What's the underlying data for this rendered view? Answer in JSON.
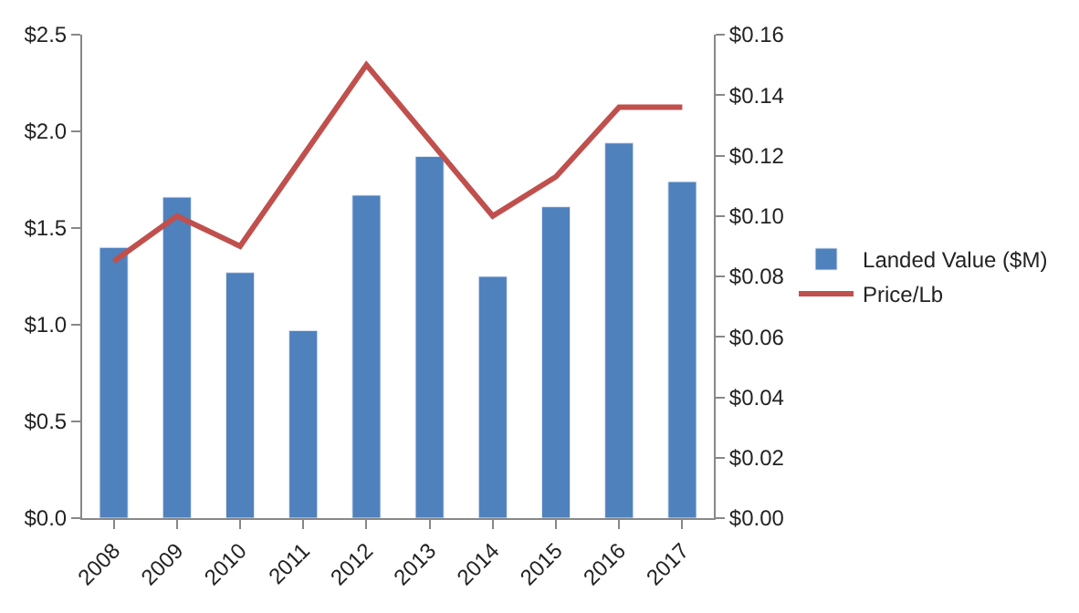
{
  "chart_data": {
    "type": "bar",
    "categories": [
      "2008",
      "2009",
      "2010",
      "2011",
      "2012",
      "2013",
      "2014",
      "2015",
      "2016",
      "2017"
    ],
    "series": [
      {
        "name": "Landed Value ($M)",
        "color": "#4f81bd",
        "values": [
          1.4,
          1.66,
          1.27,
          0.97,
          1.67,
          1.87,
          1.25,
          1.61,
          1.94,
          1.74
        ]
      },
      {
        "name": "Price/Lb",
        "color": "#c0504d",
        "type": "line",
        "axis": "y2",
        "values": [
          0.085,
          0.1,
          0.09,
          0.12,
          0.15,
          0.125,
          0.1,
          0.113,
          0.136,
          0.136
        ]
      }
    ],
    "ylim": [
      0,
      2.5
    ],
    "yticks": [
      {
        "value": 0,
        "label": "$0.0"
      },
      {
        "value": 0.5,
        "label": "$0.5"
      },
      {
        "value": 1,
        "label": "$1.0"
      },
      {
        "value": 1.5,
        "label": "$1.5"
      },
      {
        "value": 2,
        "label": "$2.0"
      },
      {
        "value": 2.5,
        "label": "$2.5"
      }
    ],
    "y2lim": [
      0,
      0.16
    ],
    "y2ticks": [
      {
        "value": 0,
        "label": "$0.00"
      },
      {
        "value": 0.02,
        "label": "$0.02"
      },
      {
        "value": 0.04,
        "label": "$0.04"
      },
      {
        "value": 0.06,
        "label": "$0.06"
      },
      {
        "value": 0.08,
        "label": "$0.08"
      },
      {
        "value": 0.1,
        "label": "$0.10"
      },
      {
        "value": 0.12,
        "label": "$0.12"
      },
      {
        "value": 0.14,
        "label": "$0.14"
      },
      {
        "value": 0.16,
        "label": "$0.16"
      }
    ],
    "legend": "right",
    "marker": "none",
    "line_style": "solid"
  }
}
